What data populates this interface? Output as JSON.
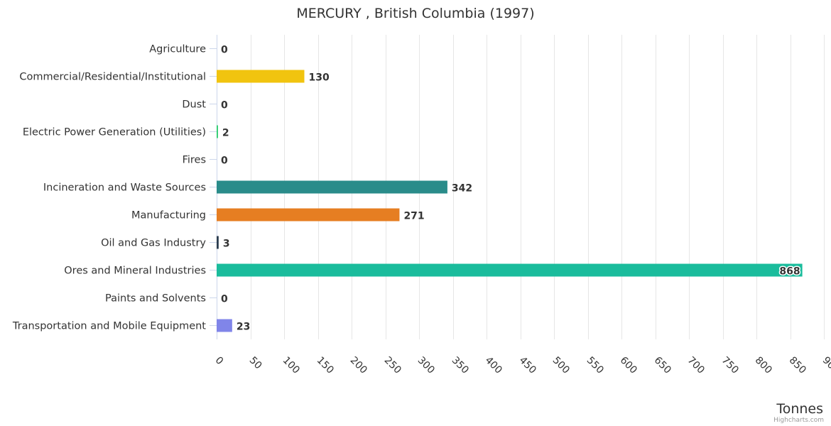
{
  "chart_data": {
    "type": "bar",
    "title": "MERCURY , British Columbia (1997)",
    "xlabel": "",
    "ylabel": "Tonnes",
    "ylim": [
      0,
      900
    ],
    "tick_step": 50,
    "grid": true,
    "categories": [
      "Agriculture",
      "Commercial/Residential/Institutional",
      "Dust",
      "Electric Power Generation (Utilities)",
      "Fires",
      "Incineration and Waste Sources",
      "Manufacturing",
      "Oil and Gas Industry",
      "Ores and Mineral Industries",
      "Paints and Solvents",
      "Transportation and Mobile Equipment"
    ],
    "values": [
      0,
      130,
      0,
      2,
      0,
      342,
      271,
      3,
      868,
      0,
      23
    ],
    "colors": [
      "#2f7ed8",
      "#f1c40f",
      "#8085e9",
      "#2ecc71",
      "#f15c80",
      "#2a8c8a",
      "#e67e22",
      "#2c3e50",
      "#1abc9c",
      "#91e8e1",
      "#8085e9"
    ],
    "credits": "Highcharts.com"
  }
}
